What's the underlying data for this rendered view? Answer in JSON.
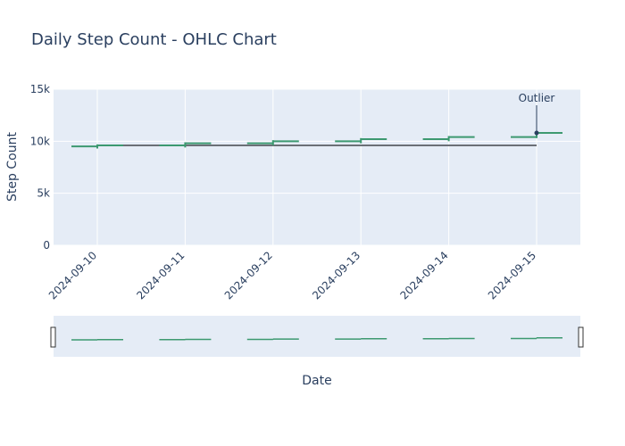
{
  "chart_data": {
    "type": "ohlc",
    "title": "Daily Step Count - OHLC Chart",
    "xlabel": "Date",
    "ylabel": "Step Count",
    "ylim": [
      0,
      15000
    ],
    "yticks": [
      0,
      5000,
      10000,
      15000
    ],
    "ytick_labels": [
      "0",
      "5k",
      "10k",
      "15k"
    ],
    "grid": true,
    "rangeslider": true,
    "colors": {
      "increasing": "#3d9970",
      "background": "#e5ecf6",
      "reference_line": "#6b6f76",
      "text": "#2a3f5f"
    },
    "categories": [
      "2024-09-10",
      "2024-09-11",
      "2024-09-12",
      "2024-09-13",
      "2024-09-14",
      "2024-09-15"
    ],
    "ohlc": [
      {
        "date": "2024-09-10",
        "open": 9500,
        "high": 9700,
        "low": 9300,
        "close": 9600
      },
      {
        "date": "2024-09-11",
        "open": 9600,
        "high": 9900,
        "low": 9400,
        "close": 9800
      },
      {
        "date": "2024-09-12",
        "open": 9800,
        "high": 10100,
        "low": 9600,
        "close": 10000
      },
      {
        "date": "2024-09-13",
        "open": 10000,
        "high": 10300,
        "low": 9800,
        "close": 10200
      },
      {
        "date": "2024-09-14",
        "open": 10200,
        "high": 10500,
        "low": 10000,
        "close": 10400
      },
      {
        "date": "2024-09-15",
        "open": 10400,
        "high": 10900,
        "low": 10300,
        "close": 10800
      }
    ],
    "reference_line": {
      "from": "2024-09-10",
      "to": "2024-09-15",
      "y": 9600
    },
    "annotations": [
      {
        "text": "Outlier",
        "x": "2024-09-15",
        "y": 10800
      }
    ]
  }
}
